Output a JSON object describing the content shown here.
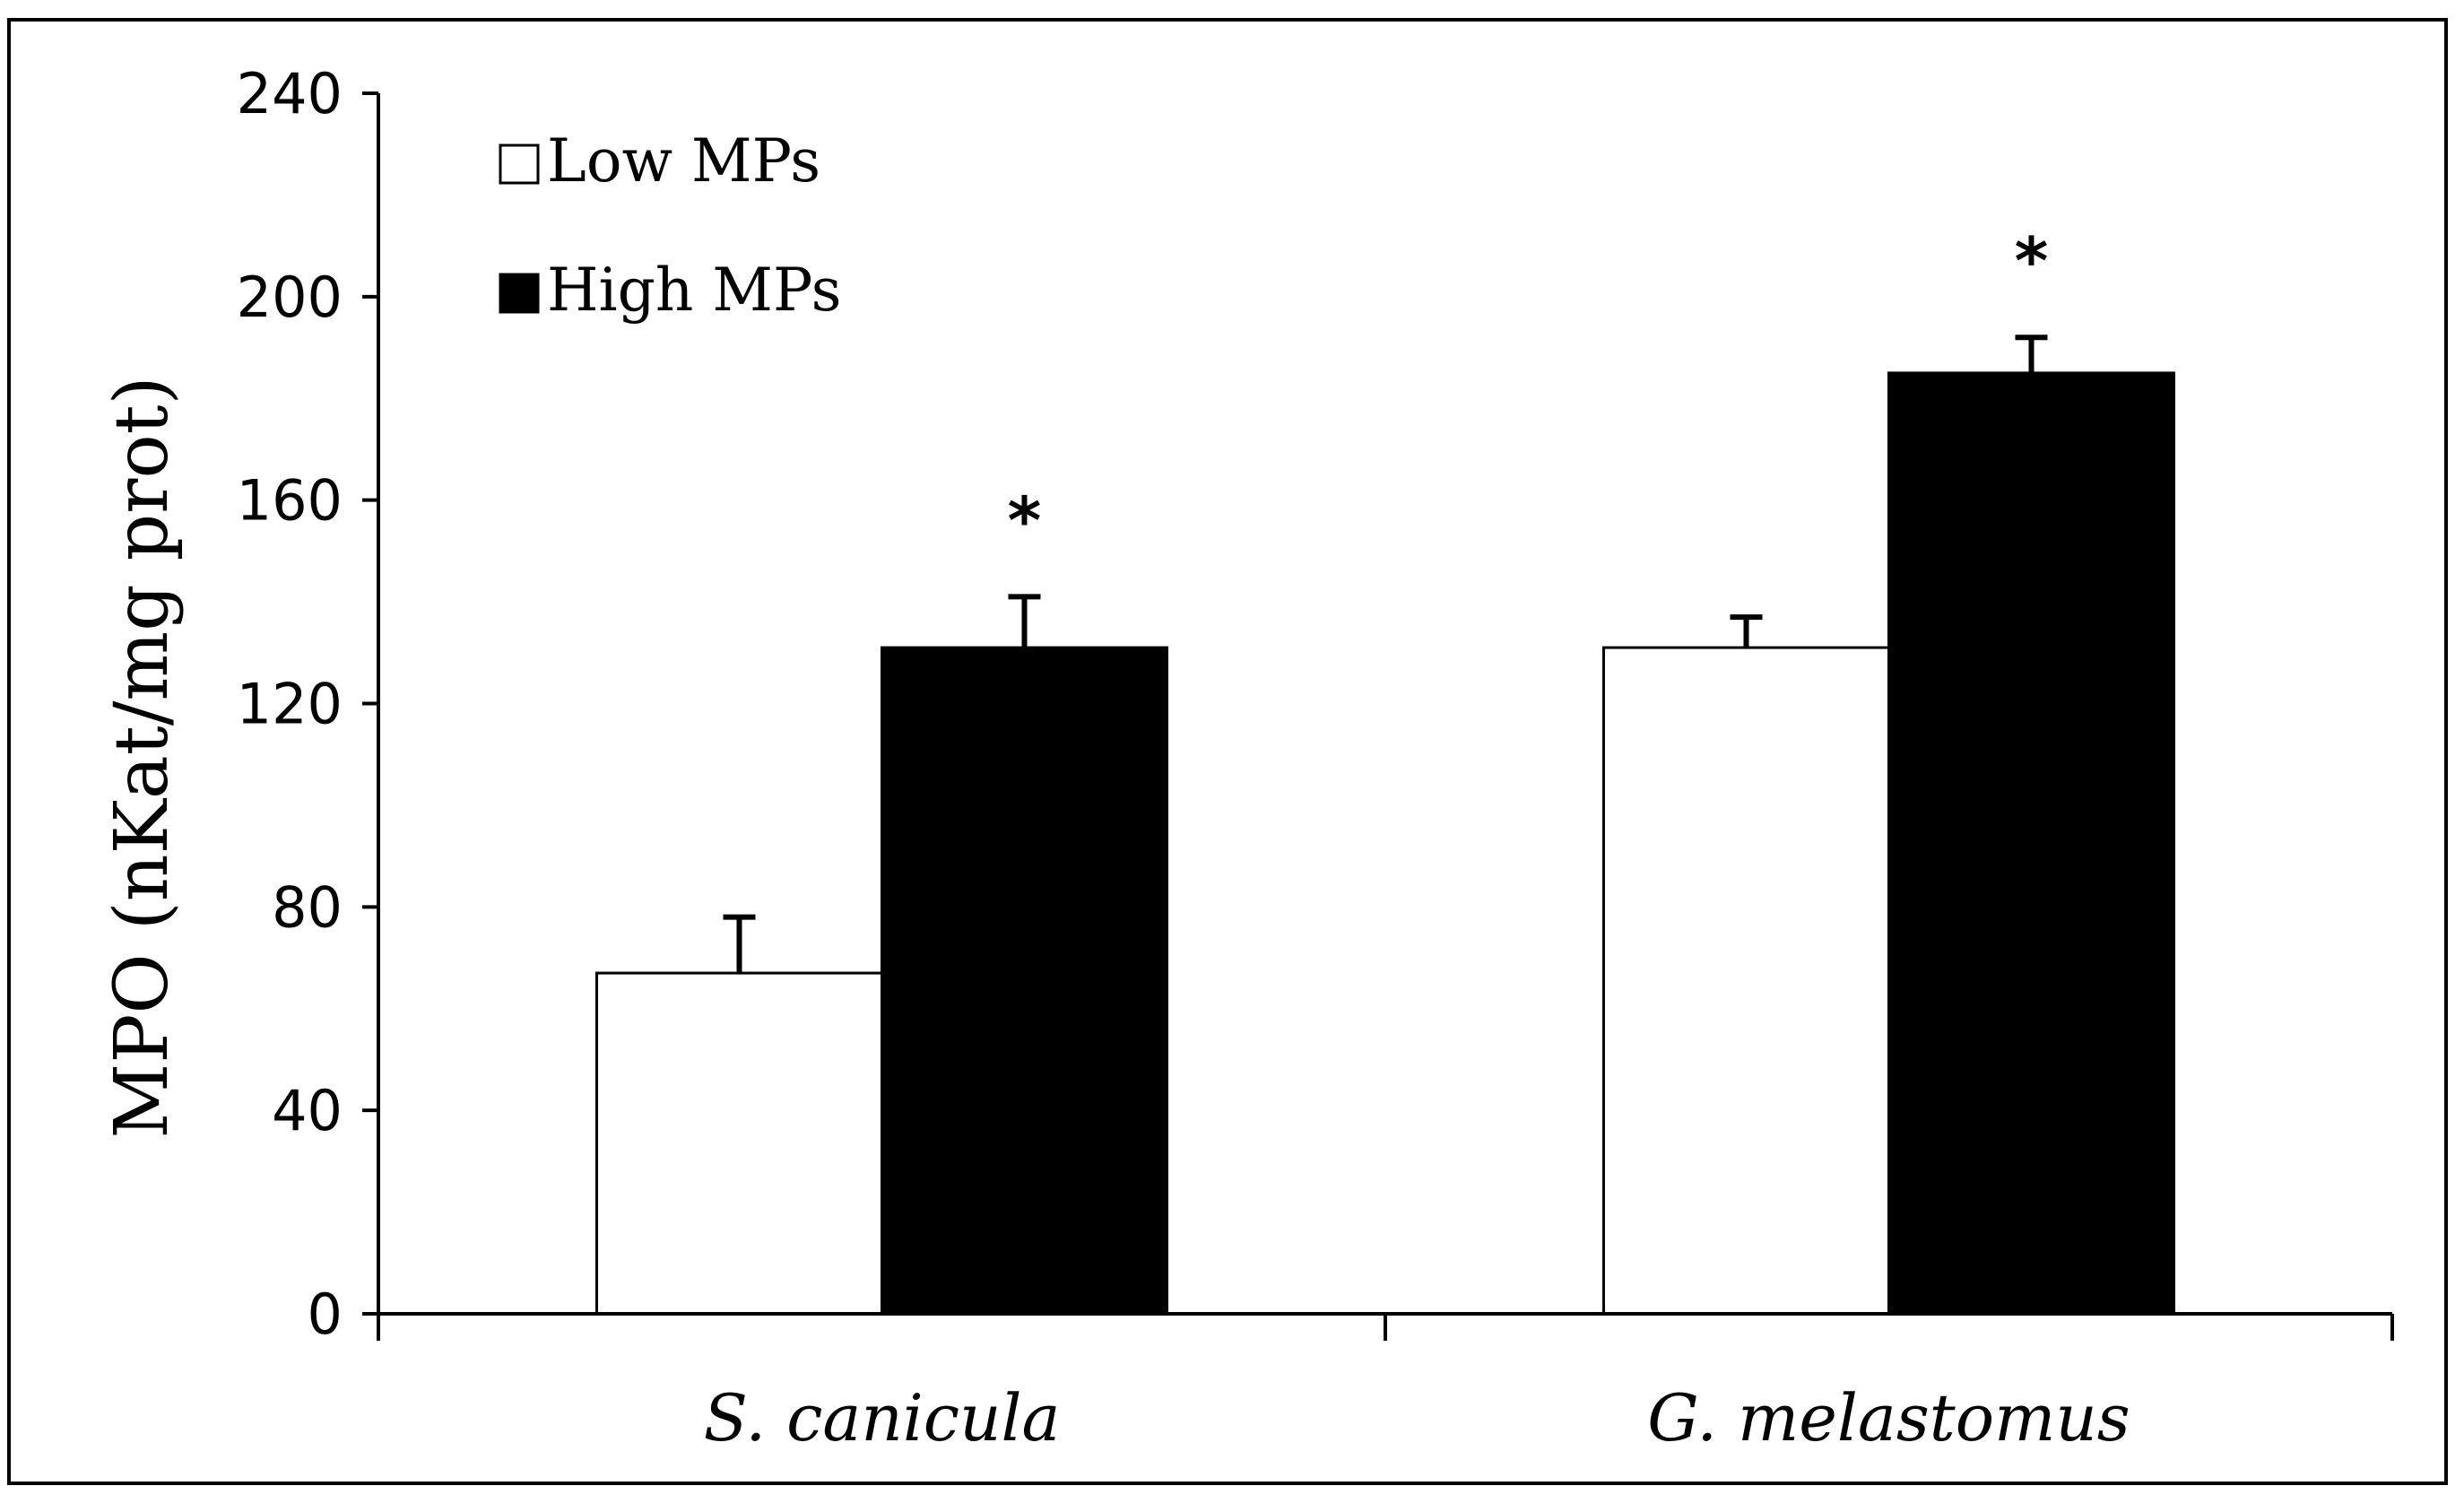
{
  "chart_data": {
    "type": "bar",
    "title": "",
    "xlabel": "",
    "ylabel": "MPO (nKat/mg prot)",
    "ylim": [
      0,
      240
    ],
    "yticks": [
      0,
      40,
      80,
      120,
      160,
      200,
      240
    ],
    "ytick_labels": [
      "0",
      "40",
      "80",
      "120",
      "160",
      "200",
      "240"
    ],
    "categories": [
      "S. canicula",
      "G. melastomus"
    ],
    "series": [
      {
        "name": "Low MPs",
        "color": "#ffffff",
        "values": [
          67,
          131
        ],
        "errors": [
          11,
          6
        ],
        "annotations": [
          "",
          ""
        ]
      },
      {
        "name": "High MPs",
        "color": "#000000",
        "values": [
          131,
          185
        ],
        "errors": [
          10,
          7
        ],
        "annotations": [
          "*",
          "*"
        ]
      }
    ],
    "legend": {
      "position": "top-left"
    },
    "grid": false
  }
}
